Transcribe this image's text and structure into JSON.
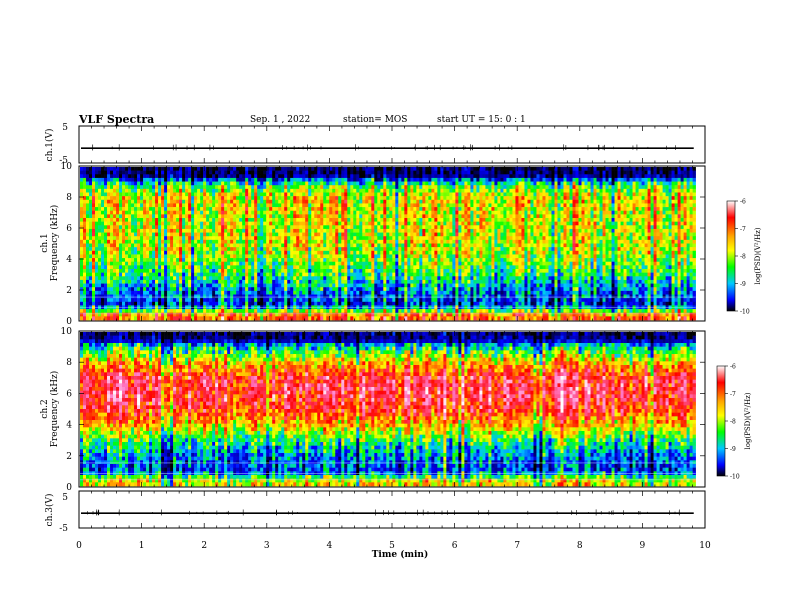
{
  "header": {
    "title": "VLF Spectra",
    "date": "Sep. 1 , 2022",
    "station": "station= MOS",
    "start": "start  UT =  15: 0  : 1"
  },
  "colorbar": {
    "label": "log(PSD)(V²/Hz)",
    "ticks": [
      "-6",
      "-7",
      "-8",
      "-9",
      "-10"
    ],
    "colors": [
      "#ffffff",
      "#ff0000",
      "#ffa500",
      "#ffff00",
      "#00ff00",
      "#00c8ff",
      "#0000ff",
      "#000000"
    ]
  },
  "chart_data": [
    {
      "type": "line",
      "ylabel": "ch.1(V)",
      "ylim": [
        -5,
        5
      ],
      "yticks": [
        "5",
        "-5"
      ],
      "xlim": [
        0,
        10
      ],
      "series": [
        {
          "values": [
            -1.0,
            -1.0
          ]
        }
      ],
      "note_values": "flat trace near -1 V with small spikes"
    },
    {
      "type": "heatmap",
      "ylabel": "ch.1",
      "ylabel2": "Frequency (kHz)",
      "ylim": [
        0,
        10
      ],
      "yticks": [
        "0",
        "2",
        "4",
        "6",
        "8",
        "10"
      ],
      "xlim": [
        0,
        9.85
      ],
      "colorbar_range": [
        -10,
        -6
      ],
      "band_profile": [
        {
          "freq": 0.3,
          "level": -7.3
        },
        {
          "freq": 1.0,
          "level": -9.3
        },
        {
          "freq": 2.0,
          "level": -8.9
        },
        {
          "freq": 3.0,
          "level": -8.4
        },
        {
          "freq": 4.0,
          "level": -8.1
        },
        {
          "freq": 5.0,
          "level": -7.9
        },
        {
          "freq": 6.0,
          "level": -7.9
        },
        {
          "freq": 7.0,
          "level": -7.9
        },
        {
          "freq": 8.0,
          "level": -7.8
        },
        {
          "freq": 8.8,
          "level": -8.3
        },
        {
          "freq": 9.5,
          "level": -9.8
        }
      ]
    },
    {
      "type": "heatmap",
      "ylabel": "ch.2",
      "ylabel2": "Frequency (kHz)",
      "ylim": [
        0,
        10
      ],
      "yticks": [
        "0",
        "2",
        "4",
        "6",
        "8",
        "10"
      ],
      "xlim": [
        0,
        9.85
      ],
      "colorbar_range": [
        -10,
        -6
      ],
      "band_profile": [
        {
          "freq": 0.3,
          "level": -7.8
        },
        {
          "freq": 1.0,
          "level": -9.2
        },
        {
          "freq": 2.0,
          "level": -8.9
        },
        {
          "freq": 3.0,
          "level": -8.4
        },
        {
          "freq": 4.0,
          "level": -7.6
        },
        {
          "freq": 5.0,
          "level": -7.0
        },
        {
          "freq": 6.0,
          "level": -6.8
        },
        {
          "freq": 7.0,
          "level": -6.9
        },
        {
          "freq": 8.0,
          "level": -7.6
        },
        {
          "freq": 9.0,
          "level": -8.6
        },
        {
          "freq": 9.7,
          "level": -9.7
        }
      ]
    },
    {
      "type": "line",
      "ylabel": "ch.3(V)",
      "ylim": [
        -5,
        5
      ],
      "yticks": [
        "5",
        "-5"
      ],
      "xlim": [
        0,
        10
      ],
      "xlabel": "Time (min)",
      "xticks": [
        "0",
        "1",
        "2",
        "3",
        "4",
        "5",
        "6",
        "7",
        "8",
        "9",
        "10"
      ],
      "series": [
        {
          "values": [
            -1.0,
            -1.0
          ]
        }
      ]
    }
  ]
}
